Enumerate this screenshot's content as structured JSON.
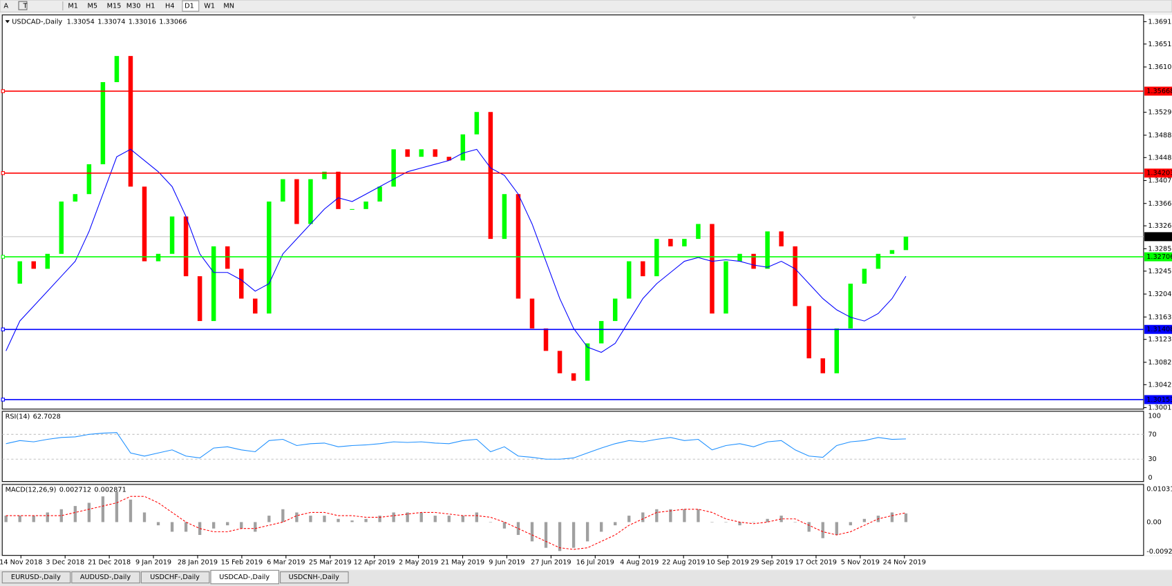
{
  "toolbar": {
    "tools": [
      "A",
      "T"
    ],
    "timeframes": [
      "M1",
      "M5",
      "M15",
      "M30",
      "H1",
      "H4",
      "D1",
      "W1",
      "MN"
    ],
    "active": "D1"
  },
  "main_chart": {
    "type": "candlestick",
    "symbol": "USDCAD-,Daily",
    "ohlc": [
      1.33054,
      1.33074,
      1.33016,
      1.33066
    ],
    "up_color": "#00ff00",
    "down_color": "#ff0000",
    "closes": [
      1.32226,
      1.32626,
      1.32492,
      1.32759,
      1.33694,
      1.33827,
      1.34361,
      1.35829,
      1.36296,
      1.33961,
      1.32626,
      1.32759,
      1.33427,
      1.32359,
      1.31558,
      1.32893,
      1.32492,
      1.31959,
      1.31692,
      1.33694,
      1.34094,
      1.33293,
      1.34094,
      1.34227,
      1.3356,
      1.3356,
      1.33694,
      1.33961,
      1.34628,
      1.34494,
      1.34628,
      1.34494,
      1.34428,
      1.34895,
      1.35295,
      1.33026,
      1.33827,
      1.31959,
      1.31425,
      1.31024,
      1.30624,
      1.30491,
      1.31158,
      1.31558,
      1.31959,
      1.32626,
      1.32359,
      1.33026,
      1.32893,
      1.33026,
      1.33293,
      1.31692,
      1.32626,
      1.32759,
      1.32492,
      1.3316,
      1.32893,
      1.31825,
      1.30891,
      1.30624,
      1.31425,
      1.32226,
      1.32492,
      1.32759,
      1.32826,
      1.33066
    ],
    "ma": {
      "color": "#0000ff",
      "values": [
        1.31024,
        1.31558,
        1.31825,
        1.32092,
        1.32359,
        1.32626,
        1.3316,
        1.33827,
        1.34494,
        1.34628,
        1.34428,
        1.34227,
        1.33961,
        1.33427,
        1.32759,
        1.32426,
        1.32426,
        1.32292,
        1.32092,
        1.32226,
        1.32759,
        1.33026,
        1.33293,
        1.3356,
        1.3376,
        1.33694,
        1.33827,
        1.33961,
        1.34094,
        1.34227,
        1.34294,
        1.34361,
        1.34428,
        1.34561,
        1.34628,
        1.34294,
        1.34161,
        1.33827,
        1.33293,
        1.32626,
        1.31959,
        1.31425,
        1.31091,
        1.30998,
        1.31158,
        1.31558,
        1.31959,
        1.32226,
        1.32426,
        1.32626,
        1.32693,
        1.32626,
        1.32653,
        1.32626,
        1.32559,
        1.32519,
        1.32626,
        1.32492,
        1.32226,
        1.31959,
        1.31758,
        1.31625,
        1.31558,
        1.31692,
        1.31959,
        1.32359
      ]
    },
    "levels": [
      {
        "price": 1.35668,
        "color": "#ff0000"
      },
      {
        "price": 1.34203,
        "color": "#ff0000"
      },
      {
        "price": 1.32706,
        "color": "#00ff00"
      },
      {
        "price": 1.31408,
        "color": "#0000ff"
      },
      {
        "price": 1.30153,
        "color": "#0000ff"
      }
    ],
    "current_price": 1.33066,
    "ylim": [
      1.29997,
      1.37017
    ],
    "yticks": [
      {
        "value": 1.3691,
        "label": "1.36910"
      },
      {
        "value": 1.3651,
        "label": "1.36510"
      },
      {
        "value": 1.361,
        "label": "1.36100"
      },
      {
        "value": 1.3529,
        "label": "1.35290"
      },
      {
        "value": 1.3488,
        "label": "1.34880"
      },
      {
        "value": 1.3448,
        "label": "1.34480"
      },
      {
        "value": 1.3407,
        "label": "1.34070"
      },
      {
        "value": 1.3366,
        "label": "1.33660"
      },
      {
        "value": 1.3326,
        "label": "1.33260"
      },
      {
        "value": 1.3285,
        "label": "1.32850"
      },
      {
        "value": 1.3245,
        "label": "1.32450"
      },
      {
        "value": 1.3204,
        "label": "1.32040"
      },
      {
        "value": 1.3163,
        "label": "1.31630"
      },
      {
        "value": 1.3123,
        "label": "1.31230"
      },
      {
        "value": 1.3082,
        "label": "1.30820"
      },
      {
        "value": 1.3042,
        "label": "1.30420"
      },
      {
        "value": 1.3001,
        "label": "1.30010"
      }
    ]
  },
  "rsi": {
    "type": "line",
    "name": "RSI(14)",
    "current": 62.7028,
    "color": "#1e90ff",
    "values": [
      55,
      60,
      58,
      62,
      65,
      66,
      70,
      72,
      73,
      40,
      35,
      40,
      45,
      35,
      32,
      48,
      50,
      45,
      42,
      60,
      62,
      52,
      55,
      56,
      50,
      52,
      53,
      55,
      58,
      57,
      58,
      56,
      55,
      60,
      62,
      42,
      50,
      35,
      33,
      30,
      30,
      32,
      40,
      48,
      55,
      60,
      58,
      62,
      65,
      60,
      62,
      45,
      52,
      55,
      50,
      58,
      60,
      45,
      35,
      33,
      52,
      58,
      60,
      65,
      62,
      62.7
    ],
    "ylim": [
      0,
      100
    ],
    "yticks": [
      100,
      70,
      30,
      0
    ],
    "levels": [
      70,
      30
    ]
  },
  "macd": {
    "type": "histogram",
    "name": "MACD(12,26,9)",
    "current": [
      0.002712,
      0.002871
    ],
    "bar_color": "#a0a0a0",
    "signal_color": "#ff0000",
    "main": [
      0.002,
      0.002,
      0.002,
      0.003,
      0.004,
      0.005,
      0.006,
      0.008,
      0.0095,
      0.007,
      0.003,
      -0.001,
      -0.003,
      -0.003,
      -0.004,
      -0.002,
      -0.001,
      -0.002,
      -0.003,
      0.002,
      0.004,
      0.003,
      0.002,
      0.002,
      0.001,
      0.0005,
      0.001,
      0.002,
      0.003,
      0.003,
      0.003,
      0.002,
      0.002,
      0.002,
      0.003,
      0.0,
      -0.002,
      -0.004,
      -0.006,
      -0.008,
      -0.009,
      -0.008,
      -0.006,
      -0.003,
      -0.001,
      0.002,
      0.003,
      0.004,
      0.004,
      0.004,
      0.004,
      0.0,
      0.0,
      -0.001,
      0.0,
      0.001,
      0.002,
      0.0,
      -0.003,
      -0.005,
      -0.004,
      -0.001,
      0.001,
      0.002,
      0.003,
      0.0027
    ],
    "signal": [
      0.002,
      0.002,
      0.002,
      0.002,
      0.002,
      0.003,
      0.004,
      0.005,
      0.006,
      0.008,
      0.008,
      0.006,
      0.003,
      0.0,
      -0.002,
      -0.003,
      -0.003,
      -0.002,
      -0.002,
      -0.001,
      0.0,
      0.002,
      0.003,
      0.003,
      0.002,
      0.002,
      0.0015,
      0.0015,
      0.002,
      0.0025,
      0.003,
      0.003,
      0.0025,
      0.002,
      0.002,
      0.0015,
      0.0,
      -0.002,
      -0.004,
      -0.006,
      -0.008,
      -0.0085,
      -0.008,
      -0.006,
      -0.004,
      -0.001,
      0.001,
      0.003,
      0.0035,
      0.004,
      0.004,
      0.003,
      0.001,
      0.0,
      -0.0005,
      0.0,
      0.001,
      0.001,
      -0.001,
      -0.003,
      -0.004,
      -0.003,
      -0.001,
      0.001,
      0.002,
      0.0029
    ],
    "ylim": [
      -0.0092,
      0.010311
    ],
    "yticks": [
      0.010311,
      {
        "value": 0,
        "label": "0.00"
      },
      {
        "value": -0.0092,
        "label": "-0.00920"
      }
    ]
  },
  "dates": [
    "14 Nov 2018",
    "3 Dec 2018",
    "21 Dec 2018",
    "9 Jan 2019",
    "28 Jan 2019",
    "15 Feb 2019",
    "6 Mar 2019",
    "25 Mar 2019",
    "12 Apr 2019",
    "2 May 2019",
    "21 May 2019",
    "9 Jun 2019",
    "27 Jun 2019",
    "16 Jul 2019",
    "4 Aug 2019",
    "22 Aug 2019",
    "10 Sep 2019",
    "29 Sep 2019",
    "17 Oct 2019",
    "5 Nov 2019",
    "24 Nov 2019"
  ],
  "tabs": [
    "EURUSD-,Daily",
    "AUDUSD-,Daily",
    "USDCHF-,Daily",
    "USDCAD-,Daily",
    "USDCNH-,Daily"
  ],
  "active_tab": 3
}
